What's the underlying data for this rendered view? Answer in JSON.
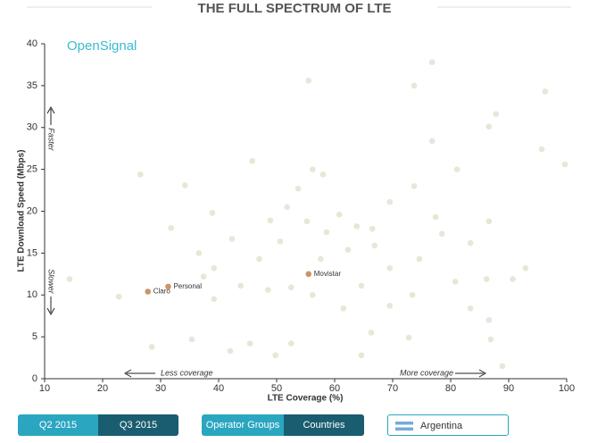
{
  "chart_data": {
    "type": "scatter",
    "title": "THE FULL SPECTRUM OF LTE",
    "brand": "OpenSignal",
    "xlabel": "LTE Coverage (%)",
    "ylabel": "LTE Download Speed (Mbps)",
    "annotations": {
      "faster": "Faster",
      "slower": "Slower",
      "less": "Less coverage",
      "more": "More coverage"
    },
    "xlim": [
      10,
      100
    ],
    "ylim": [
      0,
      40
    ],
    "xticks": [
      10,
      20,
      30,
      40,
      50,
      60,
      70,
      80,
      90,
      100
    ],
    "yticks": [
      0,
      5,
      10,
      15,
      20,
      25,
      30,
      35,
      40
    ],
    "series": [
      {
        "color": "#d6d2b8",
        "x": [
          55.5,
          76.8,
          73.7,
          96.3,
          99.7,
          95.7,
          87.8,
          86.6,
          26.5,
          34.2,
          56.2,
          58.0,
          45.8,
          53.7,
          51.8,
          38.9,
          42.3,
          36.6,
          31.8,
          48.9,
          47.0,
          50.6,
          55.2,
          58.6,
          60.8,
          63.8,
          66.5,
          69.5,
          73.7,
          76.8,
          81.1,
          77.4,
          78.5,
          83.4,
          86.6,
          92.9,
          90.7,
          86.2,
          80.8,
          73.4,
          69.5,
          64.6,
          61.5,
          66.3,
          72.8,
          83.4,
          86.6,
          86.9,
          88.9,
          64.6,
          52.5,
          45.4,
          42.0,
          35.4,
          39.2,
          43.8,
          48.5,
          52.5,
          49.8,
          28.5,
          22.8,
          14.3,
          39.2,
          37.4,
          57.6,
          74.6,
          69.5,
          62.3,
          66.9,
          56.2
        ],
        "values": [
          35.6,
          37.8,
          35.0,
          34.3,
          25.6,
          27.4,
          31.6,
          30.1,
          24.4,
          23.1,
          25.0,
          24.4,
          26.0,
          22.7,
          20.5,
          19.8,
          16.7,
          15.0,
          18.0,
          18.9,
          14.3,
          16.4,
          18.8,
          17.5,
          19.6,
          18.2,
          17.9,
          21.1,
          23.0,
          28.4,
          25.0,
          19.3,
          17.3,
          16.2,
          18.8,
          13.2,
          11.9,
          11.9,
          11.6,
          10.0,
          8.7,
          11.1,
          8.4,
          5.5,
          4.9,
          8.4,
          7.0,
          4.7,
          1.5,
          2.8,
          4.2,
          4.2,
          3.3,
          4.7,
          9.5,
          11.1,
          10.6,
          10.9,
          2.8,
          3.8,
          9.8,
          11.9,
          13.2,
          12.2,
          14.3,
          14.3,
          13.2,
          15.4,
          15.9,
          10.0
        ]
      },
      {
        "color": "#c9956a",
        "x": [
          27.8,
          31.3,
          55.5
        ],
        "values": [
          10.4,
          11.0,
          12.5
        ],
        "labels": [
          "Claro",
          "Personal",
          "Movistar"
        ]
      }
    ]
  },
  "controls": {
    "period": [
      "Q2 2015",
      "Q3 2015"
    ],
    "grouping": [
      "Operator Groups",
      "Countries"
    ],
    "country": "Argentina"
  }
}
